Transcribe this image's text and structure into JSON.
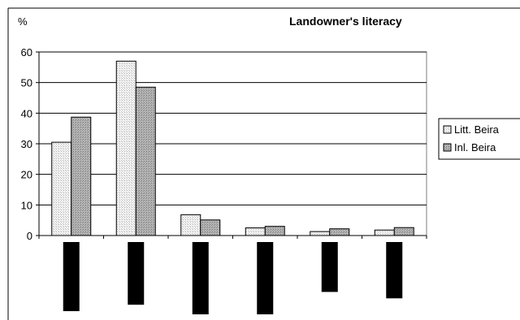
{
  "chart_data": {
    "type": "bar",
    "title": "Landowner's literacy",
    "ylabel": "%",
    "xlabel": "",
    "ylim": [
      0,
      60
    ],
    "yticks": [
      0,
      10,
      20,
      30,
      40,
      50,
      60
    ],
    "grid": true,
    "legend_position": "right",
    "categories": [
      "",
      "",
      "",
      "",
      "",
      ""
    ],
    "series": [
      {
        "name": "Litt. Beira",
        "color": "#e6e6e6",
        "pattern": "light-dotted",
        "values": [
          30.5,
          57,
          6.8,
          2.5,
          1.3,
          1.8
        ]
      },
      {
        "name": "Inl. Beira",
        "color": "#a8a8a8",
        "pattern": "dark-dotted",
        "values": [
          38.7,
          48.5,
          5.1,
          3,
          2.2,
          2.6
        ]
      }
    ],
    "redacted_category_bar_bottoms": [
      0.18,
      0.2,
      0.17,
      0.17,
      0.24,
      0.22
    ],
    "redaction_color": "#000000"
  }
}
